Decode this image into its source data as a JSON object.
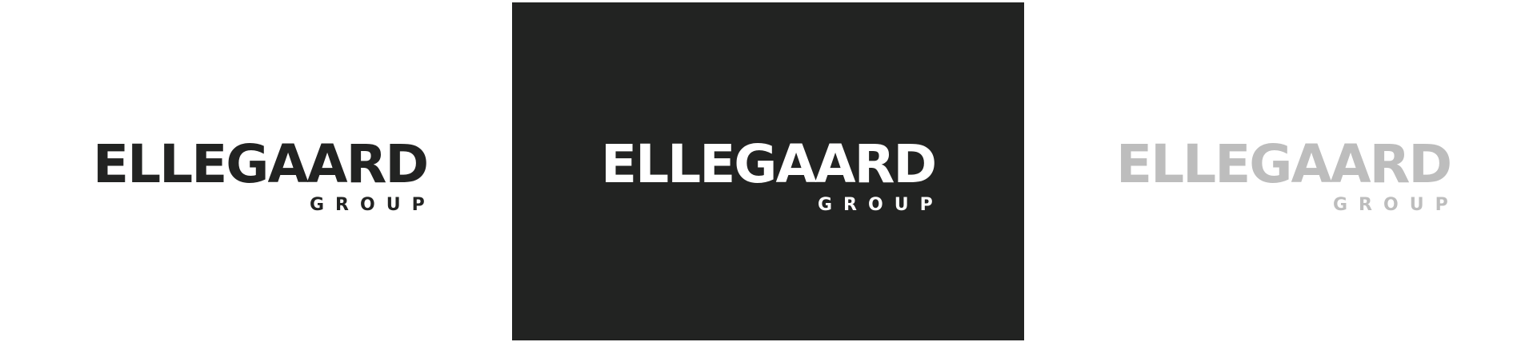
{
  "colors": {
    "background_dark": "#222322",
    "logo_dark": "#222322",
    "logo_light": "#ffffff",
    "logo_grey": "#bdbdbd"
  },
  "variants": [
    {
      "name": "dark-on-white",
      "fill": "#222322",
      "wordmark": "ELLEGAARD",
      "sub": "GROUP"
    },
    {
      "name": "white-on-dark",
      "fill": "#ffffff",
      "wordmark": "ELLEGAARD",
      "sub": "GROUP"
    },
    {
      "name": "grey-on-white",
      "fill": "#bdbdbd",
      "wordmark": "ELLEGAARD",
      "sub": "GROUP"
    }
  ]
}
